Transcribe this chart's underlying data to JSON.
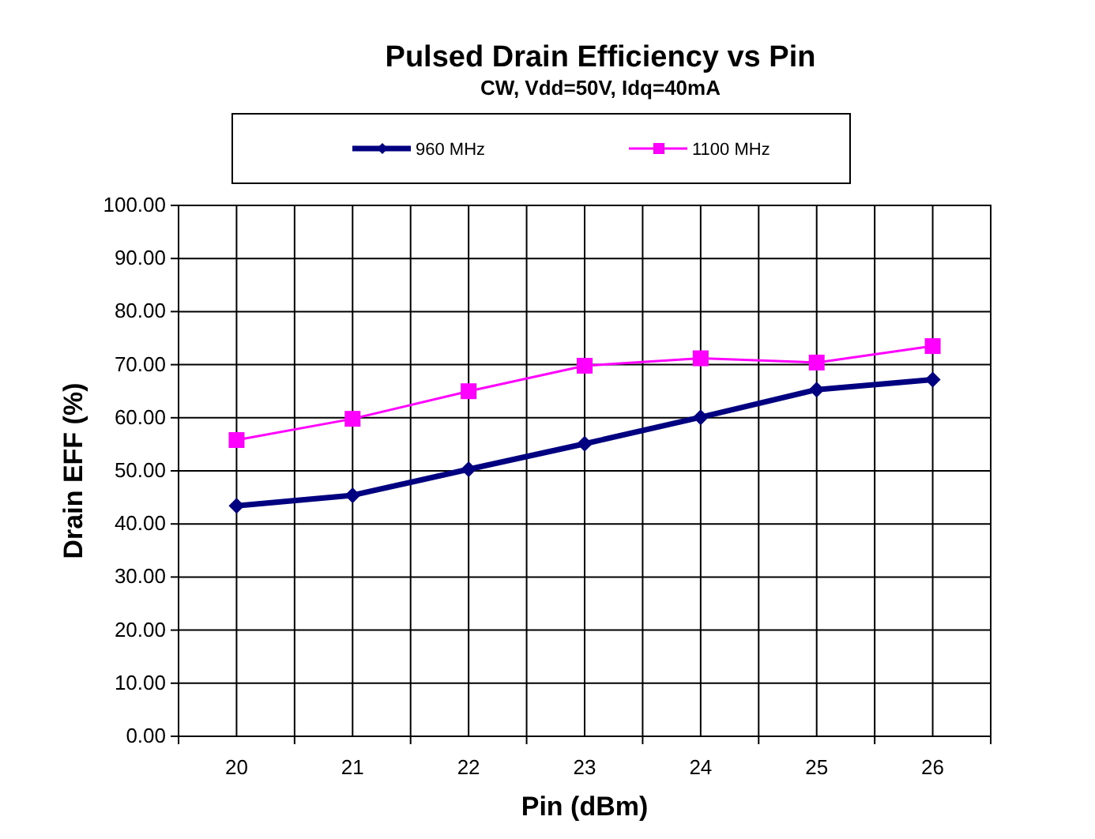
{
  "chart_data": {
    "type": "line",
    "title": "Pulsed Drain Efficiency vs Pin",
    "subtitle": "CW, Vdd=50V, Idq=40mA",
    "xlabel": "Pin (dBm)",
    "ylabel": "Drain EFF (%)",
    "categories": [
      "20",
      "21",
      "22",
      "23",
      "24",
      "25",
      "26"
    ],
    "series": [
      {
        "name": "960 MHz",
        "color": "#000080",
        "marker": "diamond",
        "values": [
          43.4,
          45.4,
          50.3,
          55.1,
          60.1,
          65.3,
          67.2
        ]
      },
      {
        "name": "1100 MHz",
        "color": "#ff00ff",
        "marker": "square",
        "values": [
          55.8,
          59.8,
          65.0,
          69.8,
          71.2,
          70.4,
          73.5
        ]
      }
    ],
    "ylim": [
      0,
      100
    ],
    "yticks": [
      {
        "value": 0,
        "label": "0.00"
      },
      {
        "value": 10,
        "label": "10.00"
      },
      {
        "value": 20,
        "label": "20.00"
      },
      {
        "value": 30,
        "label": "30.00"
      },
      {
        "value": 40,
        "label": "40.00"
      },
      {
        "value": 50,
        "label": "50.00"
      },
      {
        "value": 60,
        "label": "60.00"
      },
      {
        "value": 70,
        "label": "70.00"
      },
      {
        "value": 80,
        "label": "80.00"
      },
      {
        "value": 90,
        "label": "90.00"
      },
      {
        "value": 100,
        "label": "100.00"
      }
    ],
    "grid": true,
    "legend": "top",
    "line_style": "solid"
  }
}
